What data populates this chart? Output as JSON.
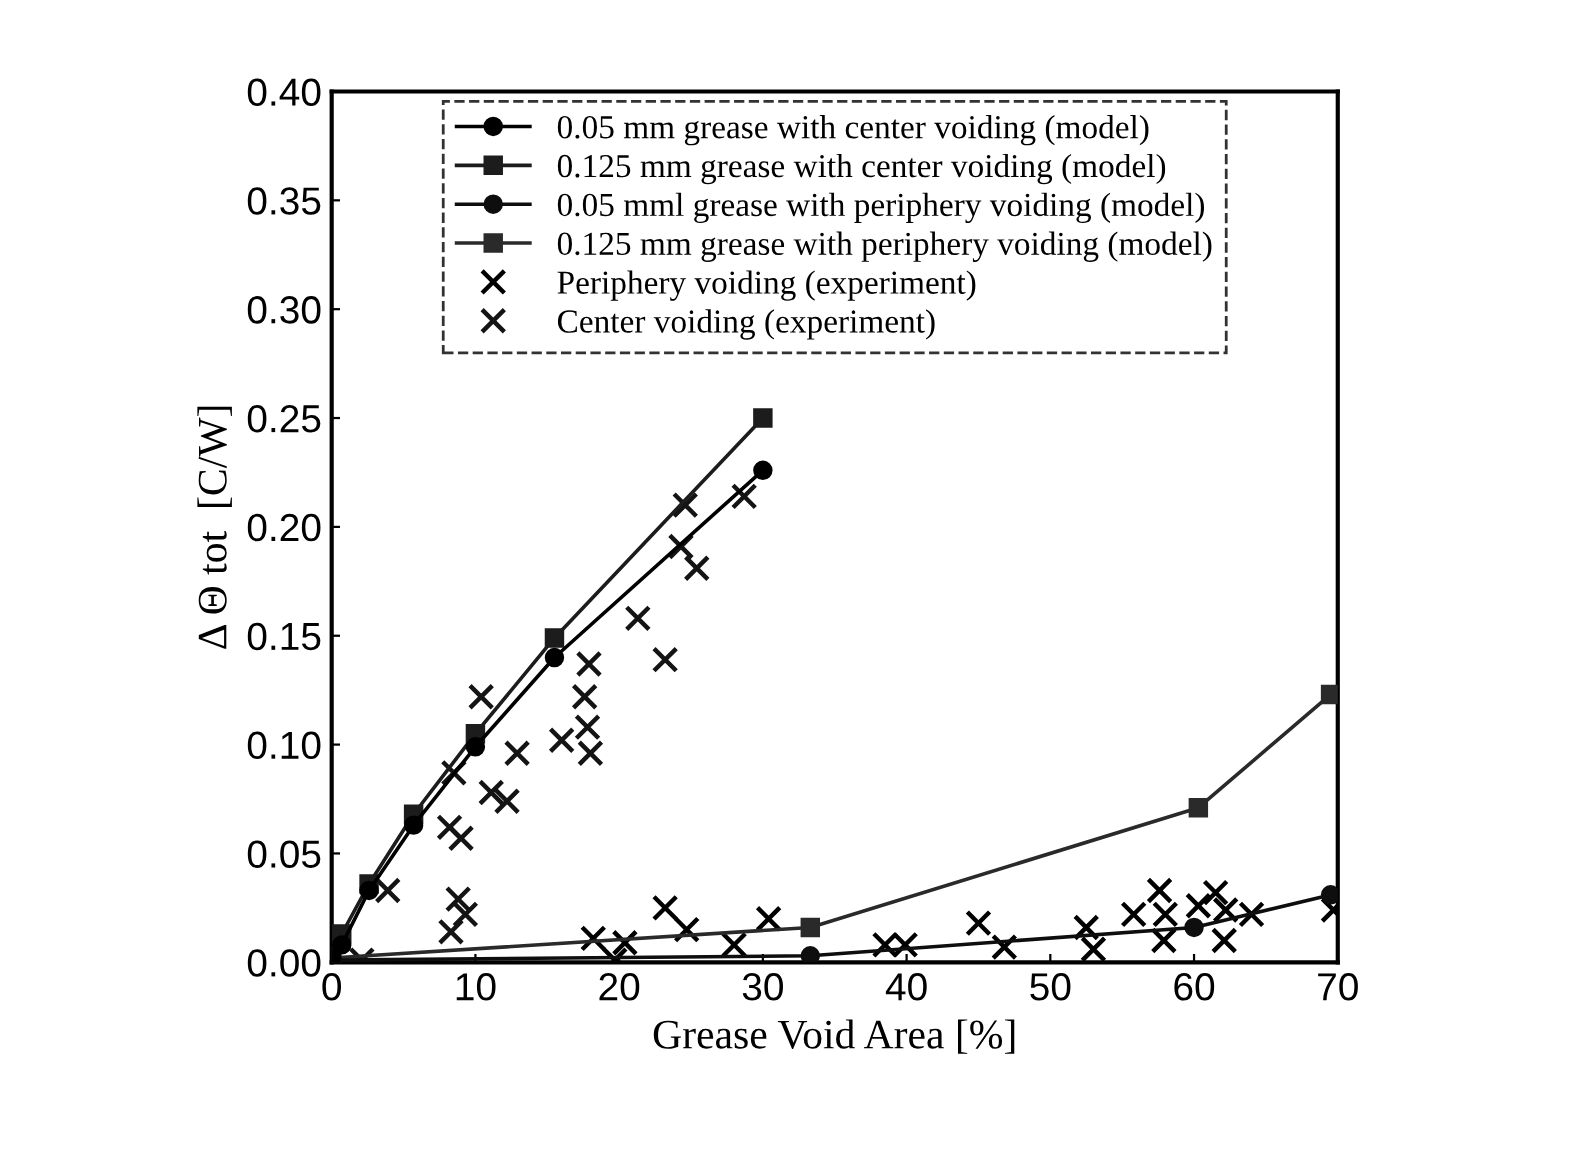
{
  "chart_data": {
    "type": "line",
    "xlabel": "Grease Void Area [%]",
    "ylabel": "Δ Θ tot  [C/W]",
    "xlim": [
      0,
      70
    ],
    "ylim": [
      0,
      0.4
    ],
    "xticks": [
      0,
      10,
      20,
      30,
      40,
      50,
      60,
      70
    ],
    "yticks": [
      {
        "value": 0,
        "label": "0.00"
      },
      {
        "value": 0.05,
        "label": "0.05"
      },
      {
        "value": 0.1,
        "label": "0.10"
      },
      {
        "value": 0.15,
        "label": "0.15"
      },
      {
        "value": 0.2,
        "label": "0.20"
      },
      {
        "value": 0.25,
        "label": "0.25"
      },
      {
        "value": 0.3,
        "label": "0.30"
      },
      {
        "value": 0.35,
        "label": "0.35"
      },
      {
        "value": 0.4,
        "label": "0.40"
      }
    ],
    "grid": false,
    "legend": "top",
    "series": [
      {
        "name": "0.05 mm grease with center voiding (model)",
        "marker": "circle",
        "color": "#000000",
        "x": [
          0,
          0.7,
          2.6,
          5.7,
          10,
          15.5,
          30
        ],
        "values": [
          0.002,
          0.008,
          0.033,
          0.063,
          0.099,
          0.14,
          0.226
        ]
      },
      {
        "name": "0.125 mm grease with center voiding (model)",
        "marker": "square",
        "color": "#1c1c1c",
        "x": [
          0,
          0.7,
          2.6,
          5.7,
          10,
          15.5,
          30
        ],
        "values": [
          0.003,
          0.013,
          0.036,
          0.068,
          0.105,
          0.149,
          0.25
        ]
      },
      {
        "name": "0.05 mml grease with periphery voiding (model)",
        "marker": "circle",
        "color": "#0e0e0e",
        "x": [
          0,
          33.3,
          60,
          69.5
        ],
        "values": [
          0.001,
          0.003,
          0.016,
          0.031
        ]
      },
      {
        "name": "0.125 mm grease with periphery voiding (model)",
        "marker": "square",
        "color": "#2a2a2a",
        "x": [
          0,
          33.3,
          60.3,
          69.5
        ],
        "values": [
          0.002,
          0.016,
          0.071,
          0.123
        ]
      },
      {
        "name": "Periphery voiding (experiment)",
        "type": "scatter",
        "marker": "cross",
        "color": "#000000",
        "x": [
          23.2,
          24.7,
          18.2,
          20.4,
          19.7,
          28.0,
          30.4,
          38.5,
          39.9,
          45.0,
          46.8,
          52.5,
          53.0,
          55.8,
          57.6,
          58.0,
          57.9,
          60.3,
          61.5,
          62.1,
          62.2,
          64.0,
          69.7
        ],
        "values": [
          0.025,
          0.015,
          0.011,
          0.009,
          0.001,
          0.008,
          0.02,
          0.008,
          0.008,
          0.018,
          0.007,
          0.016,
          0.006,
          0.022,
          0.033,
          0.022,
          0.01,
          0.026,
          0.032,
          0.01,
          0.024,
          0.022,
          0.024
        ]
      },
      {
        "name": "Center voiding (experiment)",
        "type": "scatter",
        "marker": "cross",
        "color": "#141414",
        "x": [
          21.3,
          23.2,
          17.9,
          17.6,
          17.8,
          18.0,
          16.0,
          12.9,
          10.4,
          8.5,
          11.1,
          12.2,
          8.2,
          9.0,
          3.9,
          8.8,
          9.3,
          8.3,
          2.1,
          24.6,
          28.7,
          24.3,
          25.4
        ],
        "values": [
          0.158,
          0.139,
          0.137,
          0.122,
          0.108,
          0.096,
          0.102,
          0.096,
          0.122,
          0.087,
          0.078,
          0.074,
          0.062,
          0.057,
          0.033,
          0.029,
          0.022,
          0.014,
          0.001,
          0.21,
          0.214,
          0.191,
          0.181
        ]
      }
    ]
  }
}
